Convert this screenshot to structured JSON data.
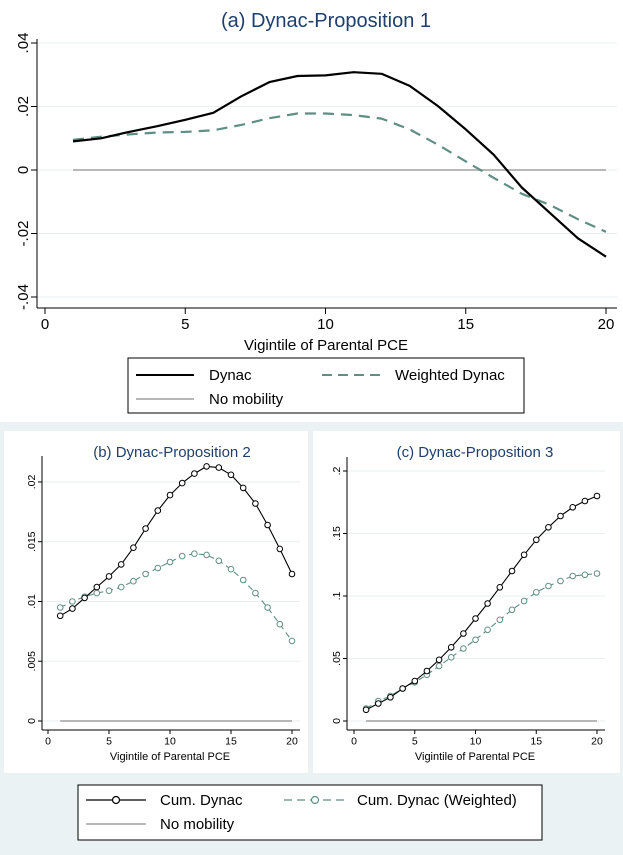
{
  "colors": {
    "title": "#1f3f6e",
    "dynac": "#000000",
    "weighted": "#5f8f84",
    "nomobility": "#b8b8b8",
    "grid": "#e9eff1",
    "panel": "#ffffff",
    "background": "#eaf2f3"
  },
  "legend_a": {
    "items": [
      {
        "label": "Dynac",
        "style": "solid",
        "color": "#000000"
      },
      {
        "label": "Weighted Dynac",
        "style": "dashed",
        "color": "#5f8f84"
      },
      {
        "label": "No mobility",
        "style": "solid",
        "color": "#b8b8b8"
      }
    ]
  },
  "legend_bc": {
    "items": [
      {
        "label": "Cum. Dynac",
        "style": "solid-circle",
        "color": "#000000"
      },
      {
        "label": "Cum. Dynac (Weighted)",
        "style": "dashed-circle",
        "color": "#5f8f84"
      },
      {
        "label": "No mobility",
        "style": "solid",
        "color": "#b8b8b8"
      }
    ]
  },
  "chart_data": [
    {
      "id": "a",
      "type": "line",
      "title": "(a) Dynac-Proposition 1",
      "xlabel": "Vigintile of Parental PCE",
      "ylabel": "",
      "xlim": [
        0,
        20
      ],
      "ylim": [
        -0.04,
        0.04
      ],
      "xticks": [
        0,
        5,
        10,
        15,
        20
      ],
      "xtick_labels": [
        "0",
        "5",
        "10",
        "15",
        "20"
      ],
      "yticks": [
        -0.04,
        -0.02,
        0,
        0.02,
        0.04
      ],
      "ytick_labels": [
        "-.04",
        "-.02",
        "0",
        ".02",
        ".04"
      ],
      "grid": true,
      "series": [
        {
          "name": "Dynac",
          "color": "#000000",
          "dash": false,
          "markers": false,
          "x": [
            1,
            2,
            3,
            4,
            5,
            6,
            7,
            8,
            9,
            10,
            11,
            12,
            13,
            14,
            15,
            16,
            17,
            18,
            19,
            20
          ],
          "y": [
            0.009,
            0.01,
            0.012,
            0.0138,
            0.0158,
            0.018,
            0.0232,
            0.0277,
            0.0296,
            0.0298,
            0.0308,
            0.0303,
            0.0265,
            0.0202,
            0.0128,
            0.0048,
            -0.0055,
            -0.0135,
            -0.0215,
            -0.0273
          ]
        },
        {
          "name": "Weighted Dynac",
          "color": "#5f8f84",
          "dash": true,
          "markers": false,
          "x": [
            1,
            2,
            3,
            4,
            5,
            6,
            7,
            8,
            9,
            10,
            11,
            12,
            13,
            14,
            15,
            16,
            17,
            18,
            19,
            20
          ],
          "y": [
            0.0095,
            0.0105,
            0.0112,
            0.0118,
            0.012,
            0.0125,
            0.0142,
            0.0163,
            0.0178,
            0.0178,
            0.0173,
            0.0162,
            0.0128,
            0.008,
            0.0027,
            -0.0025,
            -0.0075,
            -0.011,
            -0.0155,
            -0.0195
          ]
        },
        {
          "name": "No mobility",
          "color": "#b8b8b8",
          "dash": false,
          "markers": false,
          "x": [
            1,
            20
          ],
          "y": [
            0,
            0
          ]
        }
      ]
    },
    {
      "id": "b",
      "type": "line",
      "title": "(b) Dynac-Proposition 2",
      "xlabel": "Vigintile of Parental PCE",
      "ylabel": "",
      "xlim": [
        0,
        20
      ],
      "ylim": [
        0,
        0.021
      ],
      "xticks": [
        0,
        5,
        10,
        15,
        20
      ],
      "xtick_labels": [
        "0",
        "5",
        "10",
        "15",
        "20"
      ],
      "yticks": [
        0,
        0.005,
        0.01,
        0.015,
        0.02
      ],
      "ytick_labels": [
        "0",
        ".005",
        ".01",
        ".015",
        ".02"
      ],
      "grid": true,
      "series": [
        {
          "name": "Cum. Dynac",
          "color": "#000000",
          "dash": false,
          "markers": true,
          "x": [
            1,
            2,
            3,
            4,
            5,
            6,
            7,
            8,
            9,
            10,
            11,
            12,
            13,
            14,
            15,
            16,
            17,
            18,
            19,
            20
          ],
          "y": [
            0.0088,
            0.0094,
            0.0103,
            0.0112,
            0.0121,
            0.0131,
            0.0145,
            0.0161,
            0.0176,
            0.0189,
            0.0199,
            0.0207,
            0.0213,
            0.0212,
            0.0206,
            0.0195,
            0.0182,
            0.0164,
            0.0144,
            0.0123
          ]
        },
        {
          "name": "Cum. Dynac (Weighted)",
          "color": "#5f8f84",
          "dash": true,
          "markers": true,
          "x": [
            1,
            2,
            3,
            4,
            5,
            6,
            7,
            8,
            9,
            10,
            11,
            12,
            13,
            14,
            15,
            16,
            17,
            18,
            19,
            20
          ],
          "y": [
            0.0095,
            0.01,
            0.0104,
            0.0107,
            0.0109,
            0.0112,
            0.0117,
            0.0123,
            0.0128,
            0.0133,
            0.0138,
            0.014,
            0.0139,
            0.0134,
            0.0127,
            0.0118,
            0.0107,
            0.0095,
            0.0081,
            0.0067
          ]
        },
        {
          "name": "No mobility",
          "color": "#b8b8b8",
          "dash": false,
          "markers": false,
          "x": [
            1,
            20
          ],
          "y": [
            0,
            0
          ]
        }
      ]
    },
    {
      "id": "c",
      "type": "line",
      "title": "(c) Dynac-Proposition 3",
      "xlabel": "Vigintile of Parental PCE",
      "ylabel": "",
      "xlim": [
        0,
        20
      ],
      "ylim": [
        0,
        0.2
      ],
      "xticks": [
        0,
        5,
        10,
        15,
        20
      ],
      "xtick_labels": [
        "0",
        "5",
        "10",
        "15",
        "20"
      ],
      "yticks": [
        0,
        0.05,
        0.1,
        0.15,
        0.2
      ],
      "ytick_labels": [
        "0",
        ".05",
        ".1",
        ".15",
        ".2"
      ],
      "grid": true,
      "series": [
        {
          "name": "Cum. Dynac",
          "color": "#000000",
          "dash": false,
          "markers": true,
          "x": [
            1,
            2,
            3,
            4,
            5,
            6,
            7,
            8,
            9,
            10,
            11,
            12,
            13,
            14,
            15,
            16,
            17,
            18,
            19,
            20
          ],
          "y": [
            0.009,
            0.014,
            0.019,
            0.026,
            0.032,
            0.04,
            0.049,
            0.059,
            0.07,
            0.082,
            0.094,
            0.107,
            0.12,
            0.133,
            0.145,
            0.155,
            0.164,
            0.171,
            0.176,
            0.18
          ]
        },
        {
          "name": "Cum. Dynac (Weighted)",
          "color": "#5f8f84",
          "dash": true,
          "markers": true,
          "x": [
            1,
            2,
            3,
            4,
            5,
            6,
            7,
            8,
            9,
            10,
            11,
            12,
            13,
            14,
            15,
            16,
            17,
            18,
            19,
            20
          ],
          "y": [
            0.01,
            0.016,
            0.02,
            0.026,
            0.031,
            0.037,
            0.044,
            0.051,
            0.058,
            0.065,
            0.073,
            0.081,
            0.089,
            0.096,
            0.103,
            0.108,
            0.112,
            0.116,
            0.117,
            0.118
          ]
        },
        {
          "name": "No mobility",
          "color": "#b8b8b8",
          "dash": false,
          "markers": false,
          "x": [
            1,
            20
          ],
          "y": [
            0,
            0
          ]
        }
      ]
    }
  ]
}
